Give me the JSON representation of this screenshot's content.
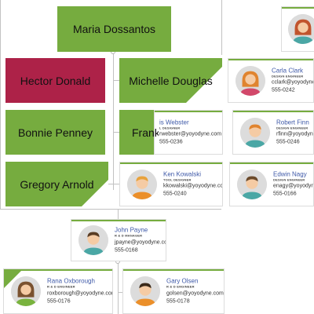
{
  "nodes": {
    "maria": {
      "name": "Maria Dossantos"
    },
    "hector": {
      "name": "Hector Donald"
    },
    "michelle": {
      "name": "Michelle Douglas"
    },
    "bonnie": {
      "name": "Bonnie Penney"
    },
    "frank": {
      "name": "Frank"
    },
    "gregory": {
      "name": "Gregory Arnold"
    }
  },
  "cards": {
    "carla": {
      "name": "Carla Clark",
      "title": "DESIGN ENGINEER",
      "email": "cclark@yoyodyne.com",
      "phone": "555-0242"
    },
    "webster": {
      "name": "is Webster",
      "title": "L DESIGNER",
      "email": "rwebster@yoyodyne.com",
      "phone": "555-0236"
    },
    "robert": {
      "name": "Robert Finn",
      "title": "DESIGN ENGINEER",
      "email": "rfinn@yoyodyne.com",
      "phone": "555-0246"
    },
    "ken": {
      "name": "Ken Kowalski",
      "title": "TOOL DESIGNER",
      "email": "kkowalski@yoyodyne.com",
      "phone": "555-0240"
    },
    "edwin": {
      "name": "Edwin Nagy",
      "title": "DESIGN ENGINEER",
      "email": "enagy@yoyodyne.com",
      "phone": "555-0166"
    },
    "john": {
      "name": "John Payne",
      "title": "R & D MANAGER",
      "email": "jpayne@yoyodyne.com",
      "phone": "555-0168"
    },
    "rana": {
      "name": "Rana Oxborough",
      "title": "R & D ENGINEER",
      "email": "roxborough@yoyodyne.com",
      "phone": "555-0176"
    },
    "gary": {
      "name": "Gary Olsen",
      "title": "R & D ENGINEER",
      "email": "golsen@yoyodyne.com",
      "phone": "555-0178"
    }
  },
  "colors": {
    "green": "#76ac3f",
    "red": "#ad2248",
    "name_blue": "#3e59a8"
  },
  "icons": {
    "female_avatar": "person-female-icon",
    "male_avatar": "person-male-icon"
  }
}
